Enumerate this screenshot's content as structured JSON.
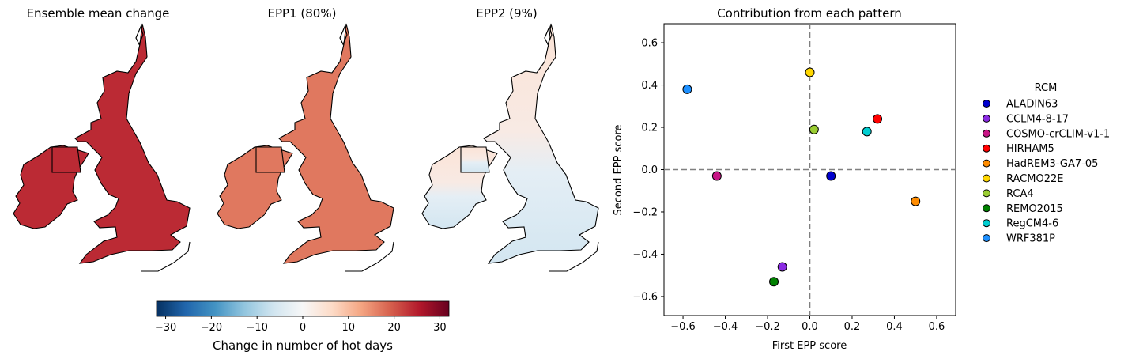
{
  "maps": [
    {
      "title": "Ensemble mean change",
      "shade": 24
    },
    {
      "title": "EPP1 (80%)",
      "shade": 17
    },
    {
      "title": "EPP2 (9%)",
      "shade": 0
    }
  ],
  "colorbar": {
    "label": "Change in number of hot days",
    "min": -32,
    "max": 32,
    "ticks": [
      -30,
      -20,
      -10,
      0,
      10,
      20,
      30
    ],
    "tick_labels": [
      "−30",
      "−20",
      "−10",
      "0",
      "10",
      "20",
      "30"
    ],
    "colormap": "RdBu_r"
  },
  "chart_data": {
    "type": "scatter",
    "title": "Contribution from each pattern",
    "xlabel": "First EPP score",
    "ylabel": "Second EPP score",
    "xlim": [
      -0.69,
      0.69
    ],
    "ylim": [
      -0.69,
      0.69
    ],
    "xticks": [
      -0.6,
      -0.4,
      -0.2,
      0.0,
      0.2,
      0.4,
      0.6
    ],
    "xtick_labels": [
      "−0.6",
      "−0.4",
      "−0.2",
      "0.0",
      "0.2",
      "0.4",
      "0.6"
    ],
    "yticks": [
      -0.6,
      -0.4,
      -0.2,
      0.0,
      0.2,
      0.4,
      0.6
    ],
    "ytick_labels": [
      "−0.6",
      "−0.4",
      "−0.2",
      "0.0",
      "0.2",
      "0.4",
      "0.6"
    ],
    "reference_lines": {
      "x": 0,
      "y": 0,
      "style": "dashed"
    },
    "grid": false,
    "legend_title": "RCM",
    "legend_position": "right outside",
    "series": [
      {
        "name": "ALADIN63",
        "x": 0.1,
        "y": -0.03,
        "color": "#0000cd"
      },
      {
        "name": "CCLM4-8-17",
        "x": -0.13,
        "y": -0.46,
        "color": "#8a2be2"
      },
      {
        "name": "COSMO-crCLIM-v1-1",
        "x": -0.44,
        "y": -0.03,
        "color": "#c71585"
      },
      {
        "name": "HIRHAM5",
        "x": 0.32,
        "y": 0.24,
        "color": "#ff0000"
      },
      {
        "name": "HadREM3-GA7-05",
        "x": 0.5,
        "y": -0.15,
        "color": "#ff8c00"
      },
      {
        "name": "RACMO22E",
        "x": 0.0,
        "y": 0.46,
        "color": "#ffd700"
      },
      {
        "name": "RCA4",
        "x": 0.02,
        "y": 0.19,
        "color": "#9acd32"
      },
      {
        "name": "REMO2015",
        "x": -0.17,
        "y": -0.53,
        "color": "#008000"
      },
      {
        "name": "RegCM4-6",
        "x": 0.27,
        "y": 0.18,
        "color": "#00ced1"
      },
      {
        "name": "WRF381P",
        "x": -0.58,
        "y": 0.38,
        "color": "#1e90ff"
      }
    ]
  }
}
